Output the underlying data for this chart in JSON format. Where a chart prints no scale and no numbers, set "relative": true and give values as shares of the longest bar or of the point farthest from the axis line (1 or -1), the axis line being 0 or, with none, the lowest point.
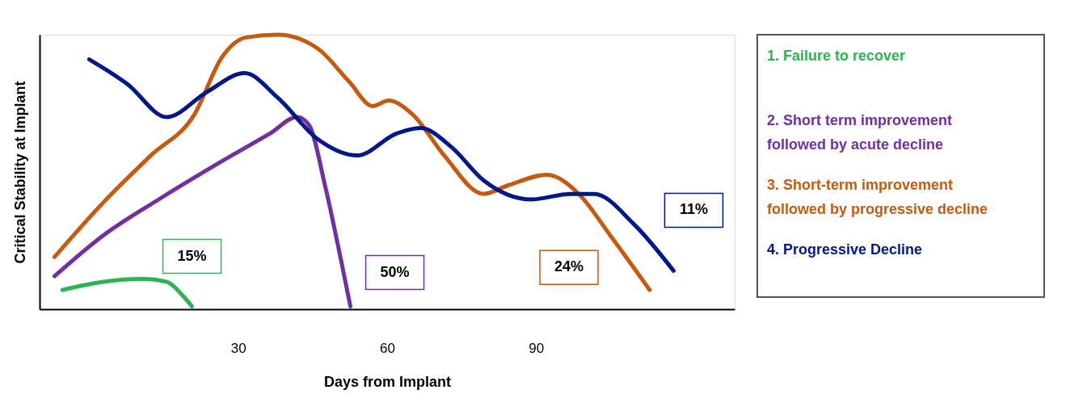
{
  "chart_data": {
    "type": "line",
    "relative": true,
    "xlabel": "Days from Implant",
    "ylabel": "Critical Stability at Implant",
    "xlim": [
      -10,
      130
    ],
    "xticks": [
      30,
      60,
      90
    ],
    "grid": false,
    "legend": "right",
    "marker": "none",
    "line_style": "solid",
    "series": [
      {
        "name": "1.   Failure to recover",
        "color": "#2fb350",
        "x": [
          -5.4,
          2.9,
          10.8,
          15.6,
          18.8,
          20.7
        ],
        "values": [
          0.07,
          0.1,
          0.11,
          0.1,
          0.05,
          0.01
        ]
      },
      {
        "name": "2. Short term improvement followed by acute decline",
        "color": "#7030a0",
        "x": [
          -7,
          2.9,
          14,
          26.8,
          36.4,
          41.9,
          44.3,
          47.5,
          50.7,
          52.6
        ],
        "values": [
          0.12,
          0.27,
          0.4,
          0.54,
          0.64,
          0.7,
          0.67,
          0.45,
          0.18,
          0.01
        ]
      },
      {
        "name": "3. Short-term improvement followed by progressive decline",
        "color": "#c55a11",
        "x": [
          -7,
          2.9,
          12.4,
          21.2,
          26.8,
          31.6,
          38,
          46,
          52.3,
          57.1,
          60.3,
          65.1,
          71.5,
          79.4,
          84.2,
          92.2,
          98.6,
          104.9,
          112.9
        ],
        "values": [
          0.19,
          0.39,
          0.56,
          0.71,
          0.92,
          0.99,
          1.0,
          0.95,
          0.83,
          0.74,
          0.76,
          0.71,
          0.56,
          0.42,
          0.45,
          0.49,
          0.42,
          0.27,
          0.07
        ]
      },
      {
        "name": "4. Progressive Decline",
        "color": "#00178a",
        "x": [
          0,
          7.7,
          15.6,
          23.6,
          31.3,
          38,
          46,
          54,
          61.9,
          66.7,
          73,
          79.4,
          89,
          97,
          101.7,
          109.7,
          117.7
        ],
        "values": [
          0.91,
          0.82,
          0.7,
          0.79,
          0.86,
          0.77,
          0.62,
          0.56,
          0.64,
          0.66,
          0.59,
          0.47,
          0.4,
          0.42,
          0.42,
          0.31,
          0.14
        ]
      }
    ],
    "annotations": [
      "15%",
      "50%",
      "24%",
      "11%"
    ]
  }
}
